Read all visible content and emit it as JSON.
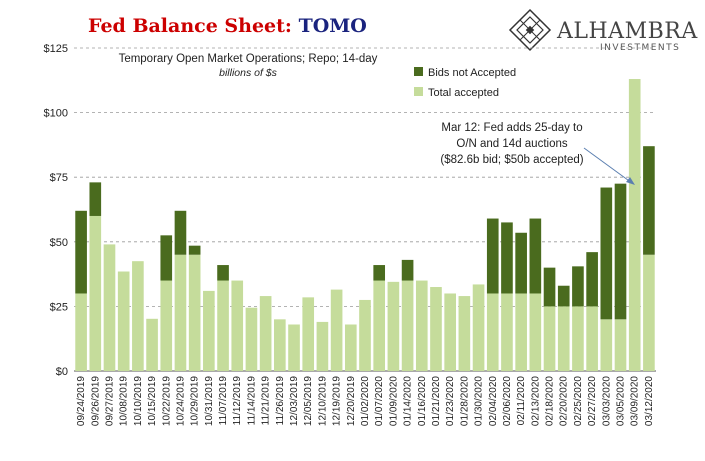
{
  "header": {
    "title_part1": "Fed Balance Sheet",
    "title_sep": ": ",
    "title_part2": "TOMO",
    "title_color1": "#cc0000",
    "title_color2": "#1a237e"
  },
  "brand": {
    "name": "ALHAMBRA",
    "tagline": "INVESTMENTS",
    "logo_icon": "diamond-lattice-icon"
  },
  "colors": {
    "bids_not_accepted": "#4a6b1e",
    "total_accepted": "#c5dc9b",
    "grid": "#9a9a9a",
    "annotation_arrow": "#5b7fb0"
  },
  "chart_data": {
    "type": "bar",
    "stacked": true,
    "subtitle": "Temporary Open Market Operations; Repo; 14-day",
    "unit_label": "billions of $s",
    "y_tick_labels": [
      "$0",
      "$25",
      "$50",
      "$75",
      "$100",
      "$125"
    ],
    "ylim": [
      0,
      125
    ],
    "grid": true,
    "legend": {
      "position": "top-right",
      "entries": [
        "Bids not Accepted",
        "Total accepted"
      ]
    },
    "annotation": {
      "lines": [
        "Mar 12: Fed adds 25-day to",
        "O/N and 14d auctions",
        "($82.6b bid; $50b accepted)"
      ]
    },
    "categories": [
      "09/24/2019",
      "09/26/2019",
      "09/27/2019",
      "10/08/2019",
      "10/10/2019",
      "10/15/2019",
      "10/22/2019",
      "10/24/2019",
      "10/29/2019",
      "10/31/2019",
      "11/07/2019",
      "11/12/2019",
      "11/14/2019",
      "11/21/2019",
      "11/26/2019",
      "12/03/2019",
      "12/05/2019",
      "12/10/2019",
      "12/19/2019",
      "12/20/2019",
      "01/02/2020",
      "01/07/2020",
      "01/09/2020",
      "01/14/2020",
      "01/16/2020",
      "01/21/2020",
      "01/23/2020",
      "01/28/2020",
      "01/30/2020",
      "02/04/2020",
      "02/06/2020",
      "02/11/2020",
      "02/13/2020",
      "02/18/2020",
      "02/20/2020",
      "02/25/2020",
      "02/27/2020",
      "03/03/2020",
      "03/05/2020",
      "03/09/2020",
      "03/12/2020"
    ],
    "series": [
      {
        "name": "Total accepted",
        "values": [
          30,
          60,
          49,
          38.5,
          42.5,
          20.2,
          35,
          45,
          45,
          31,
          35,
          35,
          24.5,
          29,
          20,
          18,
          28.5,
          19,
          31.5,
          18,
          27.5,
          35,
          34.5,
          35,
          35,
          32.5,
          30,
          29,
          33.5,
          30,
          30,
          30,
          30,
          25,
          25,
          25,
          25,
          20,
          20,
          113,
          45
        ]
      },
      {
        "name": "Bids not Accepted",
        "values": [
          32,
          13,
          0,
          0,
          0,
          0,
          17.5,
          17,
          3.5,
          0,
          6,
          0,
          0,
          0,
          0,
          0,
          0,
          0,
          0,
          0,
          0,
          6,
          0,
          8,
          0,
          0,
          0,
          0,
          0,
          29,
          27.5,
          23.5,
          29,
          15,
          8,
          15.5,
          21,
          51,
          52.5,
          0,
          42
        ]
      }
    ]
  }
}
